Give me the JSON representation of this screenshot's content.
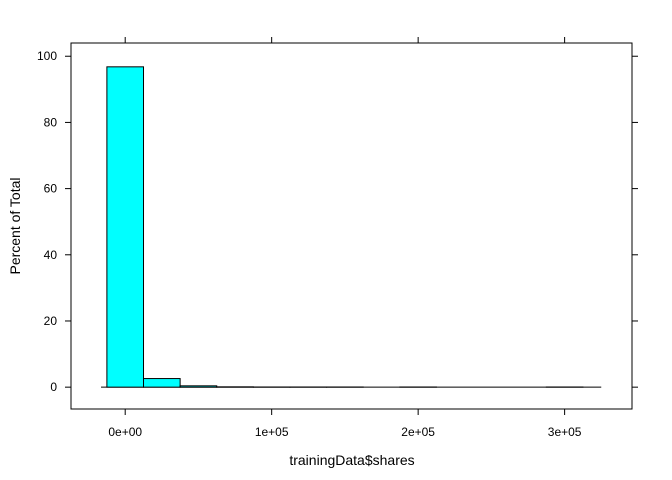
{
  "chart_data": {
    "type": "bar",
    "title": "",
    "xlabel": "trainingData$shares",
    "ylabel": "Percent of Total",
    "bin_width": 25000,
    "bins": [
      {
        "x0": -12500,
        "x1": 12500,
        "value": 96.8
      },
      {
        "x0": 12500,
        "x1": 37500,
        "value": 2.6
      },
      {
        "x0": 37500,
        "x1": 62500,
        "value": 0.4
      },
      {
        "x0": 62500,
        "x1": 87500,
        "value": 0.1
      },
      {
        "x0": 87500,
        "x1": 112500,
        "value": 0.05
      },
      {
        "x0": 112500,
        "x1": 137500,
        "value": 0.05
      },
      {
        "x0": 137500,
        "x1": 162500,
        "value": 0.05
      },
      {
        "x0": 162500,
        "x1": 187500,
        "value": 0
      },
      {
        "x0": 187500,
        "x1": 212500,
        "value": 0.05
      },
      {
        "x0": 212500,
        "x1": 237500,
        "value": 0
      },
      {
        "x0": 237500,
        "x1": 262500,
        "value": 0
      },
      {
        "x0": 262500,
        "x1": 287500,
        "value": 0
      },
      {
        "x0": 287500,
        "x1": 312500,
        "value": 0.05
      }
    ],
    "x_ticks": [
      {
        "value": 0,
        "label": "0e+00"
      },
      {
        "value": 100000,
        "label": "1e+05"
      },
      {
        "value": 200000,
        "label": "2e+05"
      },
      {
        "value": 300000,
        "label": "3e+05"
      }
    ],
    "y_ticks": [
      {
        "value": 0,
        "label": "0"
      },
      {
        "value": 20,
        "label": "20"
      },
      {
        "value": 40,
        "label": "40"
      },
      {
        "value": 60,
        "label": "60"
      },
      {
        "value": 80,
        "label": "80"
      },
      {
        "value": 100,
        "label": "100"
      }
    ],
    "xlim": [
      -37000,
      346000
    ],
    "ylim": [
      -6.6,
      104
    ],
    "grid": false,
    "legend": "none",
    "colors": {
      "bar_fill": "#00ffff",
      "bar_stroke": "#000000",
      "axis": "#000000",
      "background": "#ffffff"
    }
  }
}
